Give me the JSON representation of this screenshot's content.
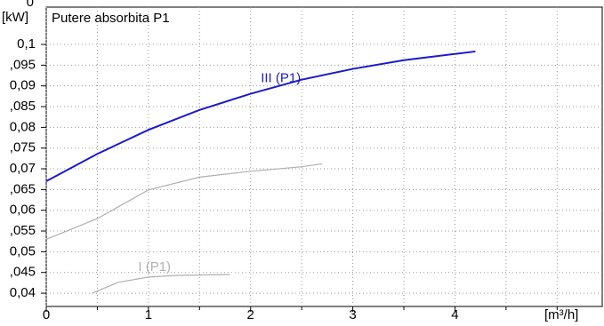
{
  "chart_data": {
    "type": "line",
    "title": "Putere absorbita P1",
    "y_label": "[kW]",
    "x_label": "[m³/h]",
    "clipped_tick": "0",
    "xlim": [
      0,
      5.45
    ],
    "xticks": [
      0,
      1,
      2,
      3,
      4
    ],
    "xminor": [
      0.5,
      1.5,
      2.5,
      3.5,
      4.5,
      5
    ],
    "ylim": [
      0.0368,
      0.109
    ],
    "yticks": [
      {
        "value": 0.04,
        "label": "0,04"
      },
      {
        "value": 0.045,
        "label": ",045"
      },
      {
        "value": 0.05,
        "label": "0,05"
      },
      {
        "value": 0.055,
        "label": ",055"
      },
      {
        "value": 0.06,
        "label": "0,06"
      },
      {
        "value": 0.065,
        "label": ",065"
      },
      {
        "value": 0.07,
        "label": "0,07"
      },
      {
        "value": 0.075,
        "label": ",075"
      },
      {
        "value": 0.08,
        "label": "0,08"
      },
      {
        "value": 0.085,
        "label": ",085"
      },
      {
        "value": 0.09,
        "label": "0,09"
      },
      {
        "value": 0.095,
        "label": ",095"
      },
      {
        "value": 0.1,
        "label": "0,1"
      }
    ],
    "grid": true,
    "series": [
      {
        "name": "III (P1)",
        "color": "#1a1acc",
        "x": [
          0,
          0.5,
          1,
          1.5,
          2,
          2.5,
          3,
          3.5,
          4,
          4.2
        ],
        "values": [
          0.067,
          0.0736,
          0.0794,
          0.0842,
          0.0881,
          0.0915,
          0.0941,
          0.0962,
          0.0977,
          0.0983
        ],
        "label_at": [
          2.1,
          0.0918
        ]
      },
      {
        "color": "#b0b0b0",
        "x": [
          0,
          0.5,
          1,
          1.5,
          2,
          2.5,
          2.7
        ],
        "values": [
          0.053,
          0.058,
          0.0649,
          0.068,
          0.0694,
          0.0705,
          0.0712
        ]
      },
      {
        "name": "I (P1)",
        "color": "#b0b0b0",
        "x": [
          0.45,
          0.7,
          1,
          1.3,
          1.8
        ],
        "values": [
          0.04,
          0.0426,
          0.0439,
          0.0443,
          0.0445
        ],
        "label_at": [
          0.9,
          0.0462
        ]
      }
    ]
  }
}
